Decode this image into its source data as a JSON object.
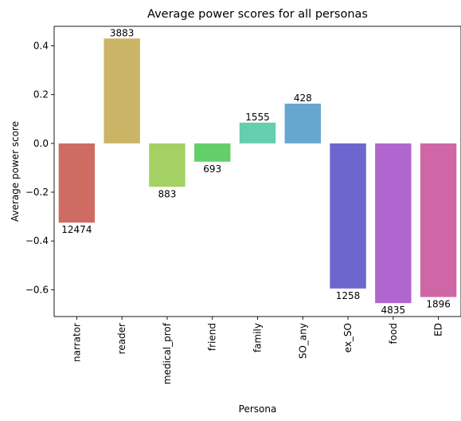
{
  "chart_data": {
    "type": "bar",
    "title": "Average power scores for all personas",
    "xlabel": "Persona",
    "ylabel": "Average power score",
    "ylim": [
      -0.71,
      0.48
    ],
    "yticks": [
      -0.6,
      -0.4,
      -0.2,
      0.0,
      0.2,
      0.4
    ],
    "ytick_labels": [
      "−0.6",
      "−0.4",
      "−0.2",
      "0.0",
      "0.2",
      "0.4"
    ],
    "categories": [
      "narrator",
      "reader",
      "medical_prof",
      "friend",
      "family",
      "SO_any",
      "ex_SO",
      "food",
      "ED"
    ],
    "values": [
      -0.325,
      0.43,
      -0.178,
      -0.075,
      0.085,
      0.163,
      -0.595,
      -0.655,
      -0.63
    ],
    "labels": [
      "12474",
      "3883",
      "883",
      "693",
      "1555",
      "428",
      "1258",
      "4835",
      "1896"
    ],
    "colors": [
      "#ce6b63",
      "#ccb466",
      "#a5d063",
      "#63cf6b",
      "#65ceaf",
      "#66a6cf",
      "#6d66cf",
      "#b166cf",
      "#cf66a6"
    ],
    "grid": false,
    "legend": "none"
  }
}
